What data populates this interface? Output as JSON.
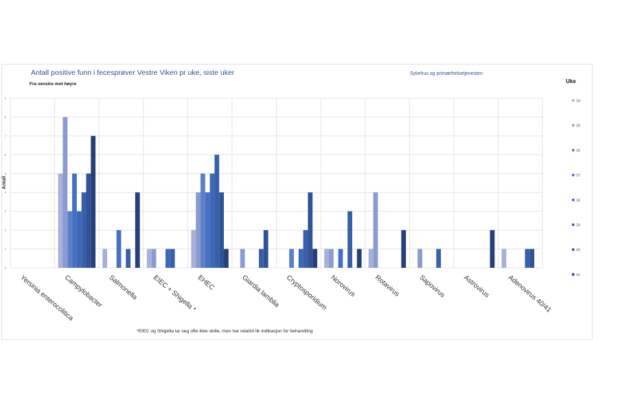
{
  "header": {
    "title": "Antall positive funn i fecesprøver Vestre Viken pr uke, siste uker",
    "subtitle": "Fra venstre mot høyre",
    "source": "Sykehus og primærhelsetjenesten",
    "footnote": "*EIEC og Shigella lar seg ofte ikke skille, men har relativt lik indikasjon for behandling"
  },
  "chart_data": {
    "type": "bar",
    "title": "Antall positive funn i fecesprøver Vestre Viken pr uke, siste uker",
    "xlabel": "",
    "ylabel": "Antall",
    "ylim": [
      0,
      9
    ],
    "yticks": [
      "0",
      "1",
      "2",
      "3",
      "4",
      "5",
      "6",
      "7",
      "8",
      "9"
    ],
    "grid": true,
    "legend_title": "Uke",
    "legend_placement": "right",
    "categories": [
      "Yersinia enterocolitica",
      "Campylobacter",
      "Salmonella",
      "EIEC + Shigella *",
      "EHEC",
      "Giardia lamblia",
      "Cryptosporidium",
      "Norovirus",
      "Rotavirus",
      "Sapovirus",
      "Astrovirus",
      "Adenovirus 40/41"
    ],
    "series": [
      {
        "name": "34",
        "color": "#a7b0d8",
        "values": [
          0,
          5,
          1,
          1,
          2,
          0,
          0,
          1,
          1,
          0,
          0,
          1
        ]
      },
      {
        "name": "35",
        "color": "#8b9bd0",
        "values": [
          0,
          8,
          0,
          1,
          4,
          1,
          0,
          1,
          4,
          1,
          0,
          0
        ]
      },
      {
        "name": "36",
        "color": "#5d7fc8",
        "values": [
          0,
          3,
          0,
          0,
          5,
          0,
          1,
          0,
          0,
          0,
          0,
          0
        ]
      },
      {
        "name": "37",
        "color": "#4671c2",
        "values": [
          0,
          5,
          2,
          0,
          4,
          0,
          0,
          1,
          0,
          0,
          0,
          0
        ]
      },
      {
        "name": "38",
        "color": "#3d68b8",
        "values": [
          0,
          3,
          0,
          1,
          5,
          0,
          1,
          0,
          0,
          0,
          0,
          0
        ]
      },
      {
        "name": "39",
        "color": "#3760a9",
        "values": [
          0,
          4,
          1,
          1,
          6,
          1,
          2,
          3,
          0,
          1,
          0,
          1
        ]
      },
      {
        "name": "40",
        "color": "#2f5396",
        "values": [
          0,
          5,
          0,
          0,
          4,
          2,
          4,
          0,
          0,
          0,
          0,
          1
        ]
      },
      {
        "name": "41",
        "color": "#253f78",
        "values": [
          0,
          7,
          4,
          0,
          1,
          0,
          1,
          1,
          2,
          0,
          2,
          0
        ]
      }
    ]
  }
}
